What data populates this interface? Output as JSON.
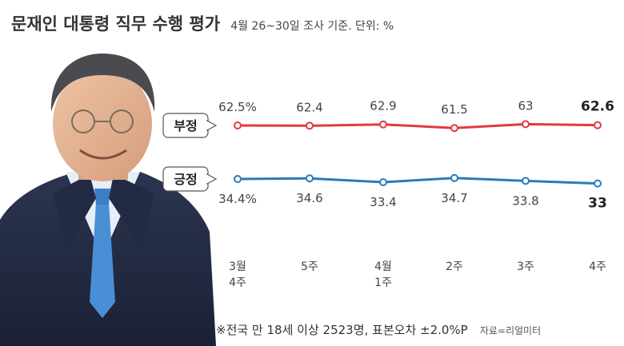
{
  "header": {
    "title": "문재인 대통령 직무 수행 평가",
    "subtitle": "4월 26~30일 조사 기준. 단위: %"
  },
  "footer": {
    "note": "※전국 만 18세 이상 2523명, 표본오차 ±2.0%P",
    "source": "자료=리얼미터"
  },
  "chart_data": {
    "type": "line",
    "categories": [
      "3월 4주",
      "5주",
      "4월 1주",
      "2주",
      "3주",
      "4주"
    ],
    "category_lines": [
      [
        "3월",
        "4주"
      ],
      [
        "5주"
      ],
      [
        "4월",
        "1주"
      ],
      [
        "2주"
      ],
      [
        "3주"
      ],
      [
        "4주"
      ]
    ],
    "series": [
      {
        "name": "부정",
        "color": "#e03a3e",
        "values": [
          62.5,
          62.4,
          62.9,
          61.5,
          63,
          62.6
        ],
        "labels": [
          "62.5%",
          "62.4",
          "62.9",
          "61.5",
          "63",
          "62.6"
        ]
      },
      {
        "name": "긍정",
        "color": "#2b7bb9",
        "values": [
          34.4,
          34.6,
          33.4,
          34.7,
          33.8,
          33
        ],
        "labels": [
          "34.4%",
          "34.6",
          "33.4",
          "34.7",
          "33.8",
          "33"
        ]
      }
    ]
  }
}
